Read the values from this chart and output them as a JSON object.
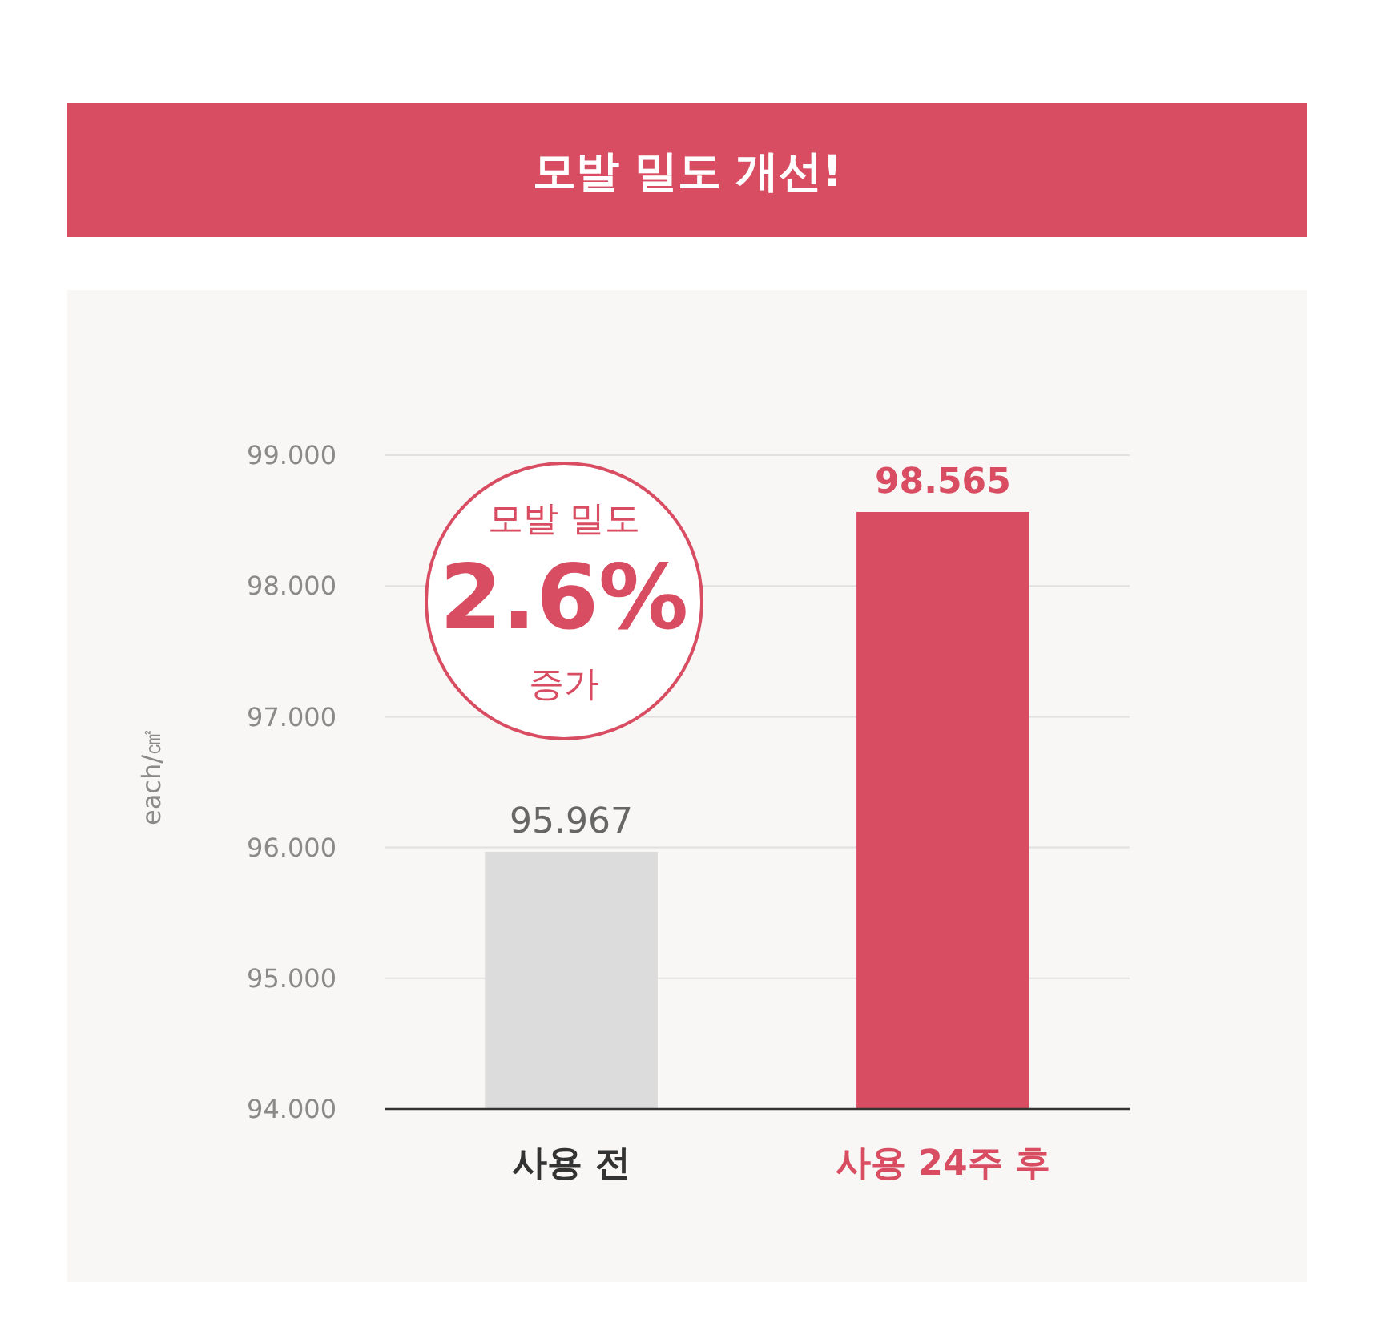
{
  "chart_data": {
    "type": "bar",
    "title": "모발 밀도 개선!",
    "ylabel": "each/㎠",
    "categories": [
      "사용 전",
      "사용 24주 후"
    ],
    "values": [
      95.967,
      98.565
    ],
    "colors": [
      "#dcdcdc",
      "#d94d63"
    ],
    "ylim": [
      94,
      99
    ],
    "yticks": [
      {
        "value": 94,
        "label": "94.000"
      },
      {
        "value": 95,
        "label": "95.000"
      },
      {
        "value": 96,
        "label": "96.000"
      },
      {
        "value": 97,
        "label": "97.000"
      },
      {
        "value": 98,
        "label": "98.000"
      },
      {
        "value": 99,
        "label": "99.000"
      }
    ],
    "grid": "y",
    "data_labels": true,
    "annotations": [
      "모발 밀도",
      "2.6%",
      "증가"
    ]
  }
}
